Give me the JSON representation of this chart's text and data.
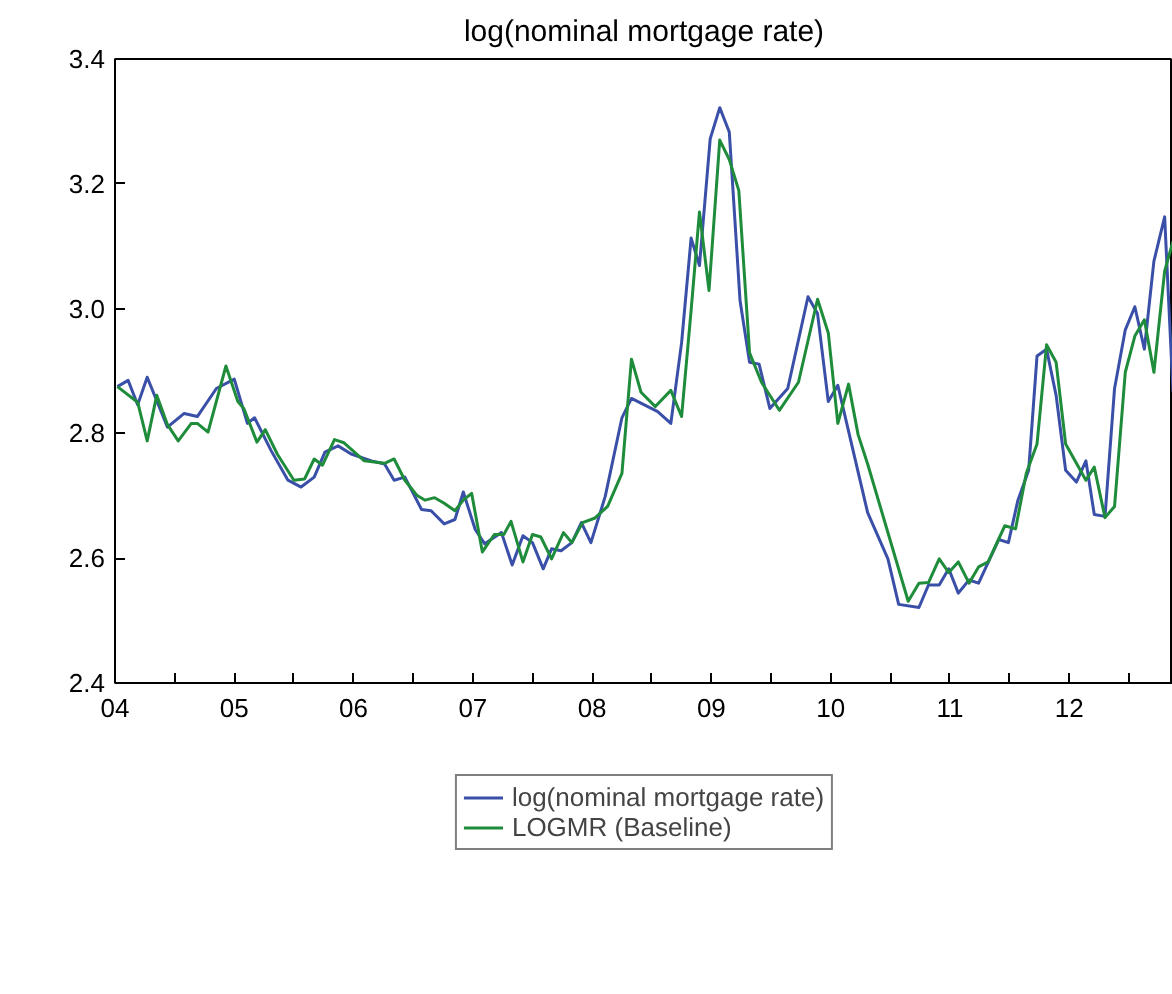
{
  "chart_data": {
    "type": "line",
    "title": "log(nominal mortgage rate)",
    "xlim": [
      2004,
      2012.87
    ],
    "ylim": [
      2.4,
      3.4
    ],
    "yticks": [
      2.4,
      2.6,
      2.8,
      {
        "value": 3.0,
        "label": "3.0"
      },
      3.2,
      3.4
    ],
    "xticks": [
      {
        "value": 2004,
        "label": "04"
      },
      {
        "value": 2004.5,
        "label": null
      },
      {
        "value": 2005,
        "label": "05"
      },
      {
        "value": 2005.5,
        "label": null
      },
      {
        "value": 2006,
        "label": "06"
      },
      {
        "value": 2006.5,
        "label": null
      },
      {
        "value": 2007,
        "label": "07"
      },
      {
        "value": 2007.5,
        "label": null
      },
      {
        "value": 2008,
        "label": "08"
      },
      {
        "value": 2008.5,
        "label": null
      },
      {
        "value": 2009,
        "label": "09"
      },
      {
        "value": 2009.5,
        "label": null
      },
      {
        "value": 2010,
        "label": "10"
      },
      {
        "value": 2010.5,
        "label": null
      },
      {
        "value": 2011,
        "label": "11"
      },
      {
        "value": 2011.5,
        "label": null
      },
      {
        "value": 2012,
        "label": "12"
      },
      {
        "value": 2012.5,
        "label": null
      }
    ],
    "grid": false,
    "legend": "bottom",
    "marker": "none",
    "line_style": "solid",
    "series": [
      {
        "name": "log(nominal mortgage rate)",
        "color": "#3a4fa8",
        "x": [
          2004.02,
          2004.11,
          2004.19,
          2004.27,
          2004.44,
          2004.58,
          2004.69,
          2004.85,
          2005.0,
          2005.11,
          2005.17,
          2005.31,
          2005.45,
          2005.56,
          2005.67,
          2005.76,
          2005.87,
          2005.98,
          2006.15,
          2006.26,
          2006.34,
          2006.43,
          2006.57,
          2006.65,
          2006.76,
          2006.85,
          2006.92,
          2007.02,
          2007.1,
          2007.24,
          2007.33,
          2007.42,
          2007.5,
          2007.59,
          2007.66,
          2007.74,
          2007.83,
          2007.91,
          2007.99,
          2008.11,
          2008.25,
          2008.33,
          2008.55,
          2008.66,
          2008.75,
          2008.83,
          2008.9,
          2008.99,
          2009.07,
          2009.15,
          2009.24,
          2009.32,
          2009.4,
          2009.49,
          2009.64,
          2009.81,
          2009.89,
          2009.98,
          2010.06,
          2010.31,
          2010.48,
          2010.57,
          2010.74,
          2010.82,
          2010.91,
          2010.99,
          2011.07,
          2011.16,
          2011.24,
          2011.41,
          2011.49,
          2011.57,
          2011.66,
          2011.73,
          2011.81,
          2011.89,
          2011.97,
          2012.06,
          2012.14,
          2012.21,
          2012.3,
          2012.38,
          2012.47,
          2012.55,
          2012.63,
          2012.71,
          2012.8,
          2012.87
        ],
        "values": [
          2.875,
          2.885,
          2.846,
          2.89,
          2.81,
          2.832,
          2.827,
          2.872,
          2.887,
          2.816,
          2.825,
          2.772,
          2.725,
          2.714,
          2.73,
          2.77,
          2.78,
          2.767,
          2.756,
          2.751,
          2.725,
          2.73,
          2.678,
          2.676,
          2.655,
          2.662,
          2.706,
          2.646,
          2.623,
          2.641,
          2.589,
          2.636,
          2.625,
          2.583,
          2.615,
          2.612,
          2.625,
          2.657,
          2.625,
          2.699,
          2.825,
          2.856,
          2.835,
          2.816,
          2.945,
          3.113,
          3.069,
          3.272,
          3.322,
          3.283,
          3.013,
          2.914,
          2.911,
          2.84,
          2.872,
          3.019,
          2.992,
          2.851,
          2.877,
          2.673,
          2.599,
          2.526,
          2.521,
          2.557,
          2.557,
          2.583,
          2.544,
          2.565,
          2.56,
          2.63,
          2.625,
          2.693,
          2.741,
          2.924,
          2.935,
          2.861,
          2.741,
          2.722,
          2.756,
          2.67,
          2.667,
          2.872,
          2.966,
          3.003,
          2.935,
          3.076,
          3.147,
          2.866
        ]
      },
      {
        "name": "LOGMR (Baseline)",
        "color": "#1e8c3a",
        "x": [
          2004.02,
          2004.19,
          2004.27,
          2004.35,
          2004.44,
          2004.53,
          2004.64,
          2004.69,
          2004.78,
          2004.93,
          2005.03,
          2005.08,
          2005.19,
          2005.26,
          2005.36,
          2005.5,
          2005.59,
          2005.67,
          2005.74,
          2005.84,
          2005.92,
          2006.09,
          2006.26,
          2006.34,
          2006.43,
          2006.53,
          2006.6,
          2006.68,
          2006.76,
          2006.85,
          2006.92,
          2006.99,
          2007.08,
          2007.18,
          2007.26,
          2007.32,
          2007.42,
          2007.5,
          2007.57,
          2007.66,
          2007.76,
          2007.83,
          2007.92,
          2008.02,
          2008.13,
          2008.25,
          2008.33,
          2008.41,
          2008.53,
          2008.66,
          2008.75,
          2008.83,
          2008.9,
          2008.98,
          2009.07,
          2009.15,
          2009.23,
          2009.32,
          2009.42,
          2009.57,
          2009.73,
          2009.89,
          2009.98,
          2010.06,
          2010.15,
          2010.23,
          2010.31,
          2010.65,
          2010.74,
          2010.82,
          2010.91,
          2010.99,
          2011.07,
          2011.16,
          2011.24,
          2011.32,
          2011.46,
          2011.55,
          2011.64,
          2011.73,
          2011.81,
          2011.89,
          2011.97,
          2012.14,
          2012.21,
          2012.3,
          2012.38,
          2012.47,
          2012.55,
          2012.63,
          2012.71,
          2012.8,
          2012.87
        ],
        "values": [
          2.875,
          2.85,
          2.788,
          2.861,
          2.814,
          2.788,
          2.816,
          2.816,
          2.802,
          2.908,
          2.851,
          2.84,
          2.786,
          2.806,
          2.767,
          2.725,
          2.727,
          2.759,
          2.749,
          2.79,
          2.785,
          2.756,
          2.752,
          2.759,
          2.725,
          2.701,
          2.693,
          2.697,
          2.688,
          2.676,
          2.693,
          2.704,
          2.61,
          2.638,
          2.638,
          2.659,
          2.594,
          2.638,
          2.634,
          2.599,
          2.641,
          2.625,
          2.657,
          2.664,
          2.683,
          2.736,
          2.919,
          2.866,
          2.843,
          2.869,
          2.827,
          2.997,
          3.155,
          3.029,
          3.27,
          3.239,
          3.189,
          2.929,
          2.882,
          2.837,
          2.882,
          3.015,
          2.961,
          2.816,
          2.879,
          2.798,
          2.751,
          2.531,
          2.56,
          2.561,
          2.599,
          2.577,
          2.594,
          2.56,
          2.586,
          2.594,
          2.652,
          2.647,
          2.736,
          2.783,
          2.942,
          2.914,
          2.783,
          2.725,
          2.746,
          2.665,
          2.683,
          2.898,
          2.956,
          2.982,
          2.898,
          3.06,
          3.108
        ]
      }
    ]
  }
}
